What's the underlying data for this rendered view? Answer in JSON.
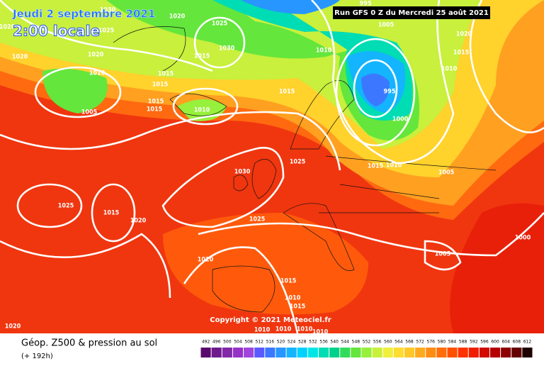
{
  "header": {
    "date": "Jeudi 2 septembre 2021",
    "time": "2:00 locale",
    "run": "Run GFS 0 Z du Mercredi 25 août 2021"
  },
  "copyright": "Copyright © 2021 Meteociel.fr",
  "footer": {
    "title": "Géop. Z500 & pression au sol",
    "lead": "(+ 192h)"
  },
  "isobar_labels": [
    "1030",
    "1020",
    "1025",
    "1020",
    "1020",
    "1020",
    "1025",
    "1030",
    "1015",
    "1010",
    "1015",
    "1015",
    "1015",
    "1015",
    "1010",
    "1005",
    "1010",
    "1015",
    "995",
    "1005",
    "1020",
    "1015",
    "1010",
    "995",
    "1000",
    "1030",
    "1025",
    "1015",
    "1010",
    "1005",
    "1025",
    "1015",
    "1020",
    "1025",
    "1000",
    "1005",
    "1020",
    "1015",
    "1010",
    "1015",
    "1010",
    "1010",
    "1010",
    "1010",
    "1020"
  ],
  "color_scale": {
    "ticks": [
      492,
      496,
      500,
      504,
      508,
      512,
      516,
      520,
      524,
      528,
      532,
      536,
      540,
      544,
      548,
      552,
      556,
      560,
      564,
      568,
      572,
      576,
      580,
      584,
      588,
      592,
      596,
      600,
      604,
      608,
      612
    ],
    "colors": [
      "#5a0a6e",
      "#6e1a8c",
      "#8228a8",
      "#9632c8",
      "#a046dc",
      "#5a5aff",
      "#3c78ff",
      "#2896ff",
      "#14b4ff",
      "#00d2ff",
      "#00e6e6",
      "#00dcb4",
      "#00d28c",
      "#32dc5a",
      "#64e63c",
      "#96f03c",
      "#c8f03c",
      "#f0f03c",
      "#ffdc32",
      "#ffc828",
      "#ffaa1e",
      "#ff8c14",
      "#ff6e0a",
      "#ff5000",
      "#ff3200",
      "#f01e00",
      "#d20a00",
      "#b40000",
      "#8c0000",
      "#640000",
      "#1e0000"
    ]
  }
}
